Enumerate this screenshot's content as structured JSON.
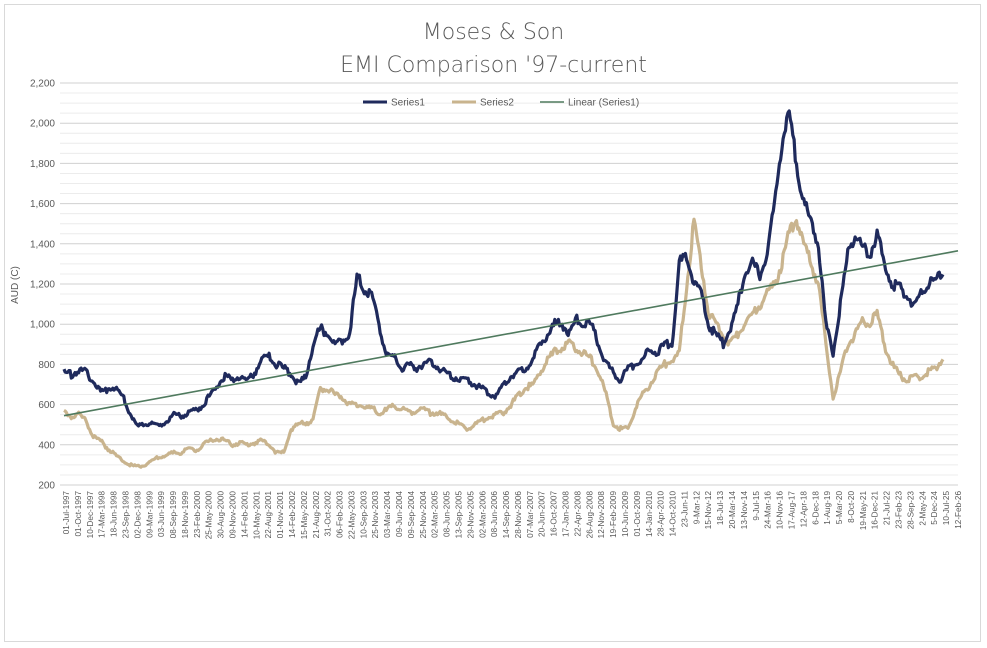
{
  "chart_data": {
    "type": "line",
    "title_line1": "Moses & Son",
    "title_line2": "EMI Comparison '97-current",
    "ylabel": "AUD (C)",
    "ylim": [
      200,
      2200
    ],
    "yticks": [
      "200",
      "400",
      "600",
      "800",
      "1,000",
      "1,200",
      "1,400",
      "1,600",
      "1,800",
      "2,000",
      "2,200"
    ],
    "grid": true,
    "legend_position": "top",
    "x_tick_labels": [
      "01-Jul-1997",
      "01-Oct-1997",
      "10-Dec-1997",
      "17-Mar-1998",
      "18-Jun-1998",
      "23-Sep-1998",
      "02-Dec-1998",
      "09-Mar-1999",
      "03-Jun-1999",
      "08-Sep-1999",
      "18-Nov-1999",
      "23-Feb-2000",
      "25-May-2000",
      "30-Aug-2000",
      "09-Nov-2000",
      "14-Feb-2001",
      "10-May-2001",
      "22-Aug-2001",
      "01-Nov-2001",
      "14-Feb-2002",
      "15-May-2002",
      "21-Aug-2002",
      "31-Oct-2002",
      "06-Feb-2003",
      "22-May-2003",
      "10-Sep-2003",
      "25-Nov-2003",
      "03-Mar-2004",
      "09-Jun-2004",
      "09-Sep-2004",
      "25-Nov-2004",
      "02-Mar-2005",
      "08-Jun-2005",
      "13-Sep-2005",
      "29-Nov-2005",
      "02-Mar-2006",
      "08-Jun-2006",
      "14-Sep-2006",
      "28-Nov-2006",
      "07-Mar-2007",
      "20-Jun-2007",
      "16-Oct-2007",
      "17-Jan-2008",
      "22-Apr-2008",
      "26-Aug-2008",
      "12-Nov-2008",
      "19-Feb-2009",
      "10-Jun-2009",
      "01-Oct-2009",
      "14-Jan-2010",
      "28-Apr-2010",
      "14-Oct-2010",
      "23-Jun-11",
      "9-Mar-12",
      "15-Nov-12",
      "18-Jul-13",
      "20-Mar-14",
      "13-Nov-14",
      "9-Jul-15",
      "24-Mar-16",
      "10-Nov-16",
      "17-Aug-17",
      "12-Apr-18",
      "6-Dec-18",
      "1-Aug-19",
      "5-Mar-20",
      "8-Oct-20",
      "19-May-21",
      "16-Dec-21",
      "21-Jul-22",
      "23-Feb-23",
      "28-Sep-23",
      "2-May-24",
      "5-Dec-24",
      "10-Jul-25",
      "12-Feb-26"
    ],
    "series": [
      {
        "name": "Series1",
        "color": "#1f2a5c",
        "values": [
          760,
          750,
          770,
          760,
          720,
          660,
          680,
          690,
          640,
          560,
          490,
          500,
          510,
          490,
          520,
          550,
          540,
          560,
          570,
          600,
          650,
          700,
          740,
          720,
          740,
          720,
          760,
          820,
          840,
          800,
          780,
          750,
          700,
          740,
          900,
          980,
          950,
          900,
          920,
          960,
          1230,
          1180,
          1150,
          1000,
          850,
          840,
          780,
          800,
          780,
          800,
          810,
          790,
          760,
          740,
          730,
          720,
          700,
          680,
          660,
          640,
          700,
          740,
          760,
          780,
          820,
          900,
          950,
          1000,
          1000,
          950,
          1020,
          1000,
          1000,
          900,
          800,
          760,
          720,
          780,
          800,
          820,
          880,
          860,
          900,
          900,
          1300,
          1350,
          1200,
          1150,
          1000,
          950,
          900,
          980,
          1100,
          1250,
          1300,
          1250,
          1350,
          1600,
          1900,
          2050,
          1800,
          1600,
          1500,
          1400,
          1000,
          860,
          1100,
          1350,
          1450,
          1380,
          1350,
          1450,
          1300,
          1200,
          1180,
          1150,
          1100,
          1150,
          1200,
          1220,
          1270
        ]
      },
      {
        "name": "Series2",
        "color": "#c9b48e",
        "values": [
          560,
          540,
          550,
          520,
          440,
          420,
          380,
          350,
          320,
          300,
          290,
          300,
          320,
          340,
          350,
          360,
          360,
          380,
          370,
          400,
          420,
          430,
          420,
          400,
          410,
          400,
          410,
          420,
          400,
          360,
          360,
          480,
          500,
          510,
          520,
          680,
          680,
          650,
          640,
          600,
          600,
          590,
          580,
          560,
          570,
          600,
          580,
          560,
          570,
          580,
          560,
          560,
          540,
          520,
          500,
          480,
          500,
          520,
          540,
          550,
          560,
          600,
          640,
          680,
          700,
          760,
          820,
          860,
          880,
          900,
          880,
          860,
          820,
          760,
          650,
          500,
          480,
          480,
          580,
          650,
          700,
          760,
          800,
          820,
          850,
          1200,
          1500,
          1300,
          1050,
          1000,
          950,
          900,
          950,
          1000,
          1050,
          1100,
          1150,
          1200,
          1300,
          1450,
          1520,
          1400,
          1300,
          1200,
          900,
          640,
          760,
          900,
          950,
          1020,
          1000,
          1050,
          900,
          800,
          750,
          720,
          730,
          740,
          760,
          780,
          840
        ]
      },
      {
        "name": "Linear (Series1)",
        "color": "#4f7a5e",
        "trend": [
          545,
          1365
        ]
      }
    ]
  }
}
